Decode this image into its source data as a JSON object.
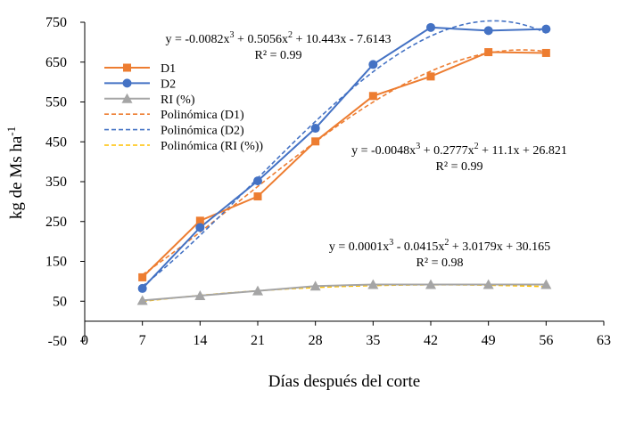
{
  "chart_data": {
    "type": "line",
    "title": "",
    "xlabel": "Días después del corte",
    "ylabel": "kg de Ms ha",
    "ylabel_sup": "-1",
    "xlim": [
      0,
      63
    ],
    "ylim": [
      -50,
      750
    ],
    "x_ticks": [
      0,
      7,
      14,
      21,
      28,
      35,
      42,
      49,
      56,
      63
    ],
    "y_ticks": [
      -50,
      50,
      150,
      250,
      350,
      450,
      550,
      650,
      750
    ],
    "grid": false,
    "legend_position": "upper-left",
    "x": [
      7,
      14,
      21,
      28,
      35,
      42,
      49,
      56
    ],
    "series": [
      {
        "name": "D1",
        "color": "#ED7D31",
        "marker": "square",
        "values": [
          110,
          252,
          313,
          451,
          565,
          614,
          675,
          673
        ]
      },
      {
        "name": "D2",
        "color": "#4472C4",
        "marker": "circle",
        "values": [
          82,
          235,
          352,
          484,
          644,
          737,
          729,
          733
        ]
      },
      {
        "name": "RI (%)",
        "color": "#A5A5A5",
        "marker": "triangle",
        "values": [
          52,
          64,
          76,
          88,
          92,
          92,
          92,
          92
        ]
      }
    ],
    "trendlines": [
      {
        "name": "Polinómica (D1)",
        "color": "#ED7D31",
        "coefficients": [
          -0.0048,
          0.2777,
          11.1,
          26.821
        ]
      },
      {
        "name": "Polinómica (D2)",
        "color": "#4472C4",
        "coefficients": [
          -0.0082,
          0.5056,
          10.443,
          -7.6143
        ]
      },
      {
        "name": "Polinómica (RI (%))",
        "color": "#FFC000",
        "coefficients": [
          0.0001,
          -0.0415,
          3.0179,
          30.165
        ]
      }
    ],
    "annotations": [
      {
        "series": "D2",
        "segments": [
          {
            "t": "y = -0.0082x"
          },
          {
            "t": "3",
            "sup": true
          },
          {
            "t": " + 0.5056x"
          },
          {
            "t": "2",
            "sup": true
          },
          {
            "t": " + 10.443x - 7.6143"
          }
        ],
        "r2": "R² = 0.99"
      },
      {
        "series": "D1",
        "segments": [
          {
            "t": "y = -0.0048x"
          },
          {
            "t": "3",
            "sup": true
          },
          {
            "t": " + 0.2777x"
          },
          {
            "t": "2",
            "sup": true
          },
          {
            "t": " + 11.1x + 26.821"
          }
        ],
        "r2": "R² = 0.99"
      },
      {
        "series": "RI (%)",
        "segments": [
          {
            "t": "y = 0.0001x"
          },
          {
            "t": "3",
            "sup": true
          },
          {
            "t": " - 0.0415x"
          },
          {
            "t": "2",
            "sup": true
          },
          {
            "t": " + 3.0179x + 30.165"
          }
        ],
        "r2": "R² = 0.98"
      }
    ]
  }
}
